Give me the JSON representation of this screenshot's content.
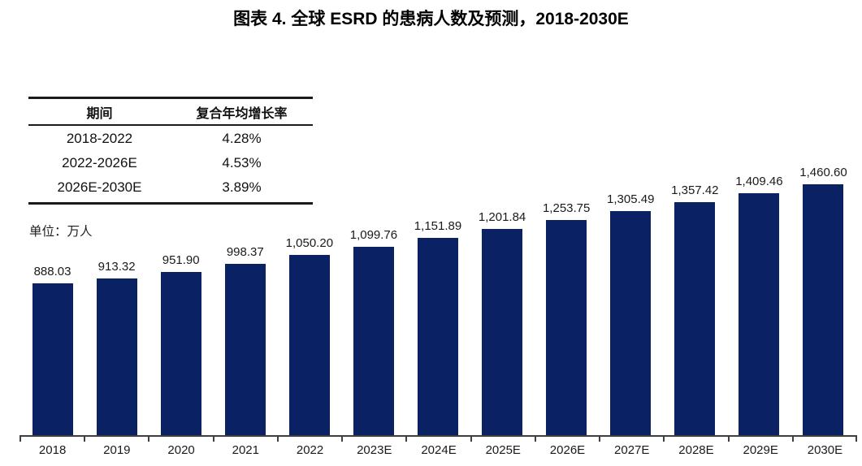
{
  "title": "图表 4. 全球 ESRD 的患病人数及预测，2018-2030E",
  "unit_label": "单位：万人",
  "cagr_table": {
    "headers": [
      "期间",
      "复合年均增长率"
    ],
    "rows": [
      {
        "period": "2018-2022",
        "cagr": "4.28%"
      },
      {
        "period": "2022-2026E",
        "cagr": "4.53%"
      },
      {
        "period": "2026E-2030E",
        "cagr": "3.89%"
      }
    ]
  },
  "colors": {
    "bar": "#0a2263",
    "axis": "#3f3f3f",
    "title": "#000000"
  },
  "chart_data": {
    "type": "bar",
    "title": "图表 4. 全球 ESRD 的患病人数及预测，2018-2030E",
    "xlabel": "",
    "ylabel": "单位：万人",
    "categories": [
      "2018",
      "2019",
      "2020",
      "2021",
      "2022",
      "2023E",
      "2024E",
      "2025E",
      "2026E",
      "2027E",
      "2028E",
      "2029E",
      "2030E"
    ],
    "values": [
      888.03,
      913.32,
      951.9,
      998.37,
      1050.2,
      1099.76,
      1151.89,
      1201.84,
      1253.75,
      1305.49,
      1357.42,
      1409.46,
      1460.6
    ],
    "value_labels": [
      "888.03",
      "913.32",
      "951.90",
      "998.37",
      "1,050.20",
      "1,099.76",
      "1,151.89",
      "1,201.84",
      "1,253.75",
      "1,305.49",
      "1,357.42",
      "1,409.46",
      "1,460.60"
    ],
    "ylim": [
      0,
      1600
    ],
    "grid": false,
    "legend_position": "none",
    "bar_color": "#0a2263",
    "cagr_annotations": [
      {
        "period": "2018-2022",
        "cagr_pct": 4.28
      },
      {
        "period": "2022-2026E",
        "cagr_pct": 4.53
      },
      {
        "period": "2026E-2030E",
        "cagr_pct": 3.89
      }
    ]
  }
}
